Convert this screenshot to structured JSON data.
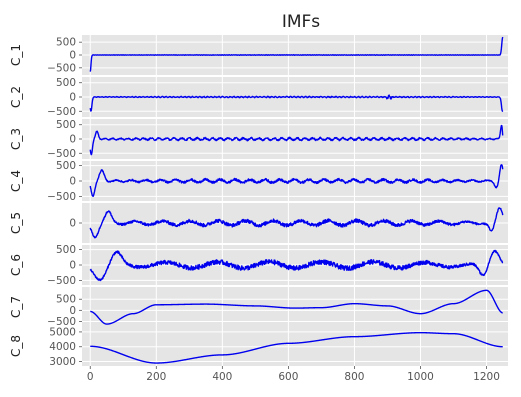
{
  "chart_data": {
    "type": "line",
    "title": "IMFs",
    "color": "#0000ee",
    "panel_background": "#e5e5e5",
    "grid": true,
    "x_ticks": [
      0,
      200,
      400,
      600,
      800,
      1000,
      1200
    ],
    "x_range": [
      -25,
      1265
    ],
    "x_samples": 1250,
    "panels": [
      {
        "name": "C_1",
        "ylim": [
          -780,
          780
        ],
        "yticks": [
          500,
          0,
          -500
        ],
        "features": [
          {
            "center": 0,
            "width": 3,
            "amplitude": -650
          },
          {
            "center": 1249,
            "width": 4,
            "amplitude": 700
          }
        ],
        "noise": [
          {
            "center": 620,
            "width": 700,
            "amplitude": 12,
            "freq": 0.9
          }
        ],
        "base": 0
      },
      {
        "name": "C_2",
        "ylim": [
          -700,
          700
        ],
        "yticks": [
          500,
          0,
          -500
        ],
        "features": [
          {
            "center": 2,
            "width": 4,
            "amplitude": -500
          },
          {
            "center": 1248,
            "width": 4,
            "amplitude": -500
          }
        ],
        "noise": [
          {
            "center": 620,
            "width": 650,
            "amplitude": 25,
            "freq": 0.55
          },
          {
            "center": 905,
            "width": 8,
            "amplitude": 90,
            "freq": 0.5
          }
        ],
        "base": 0
      },
      {
        "name": "C_3",
        "ylim": [
          -700,
          700
        ],
        "yticks": [
          500,
          0,
          -500
        ],
        "features": [
          {
            "center": 3,
            "width": 5,
            "amplitude": -550
          },
          {
            "center": 20,
            "width": 6,
            "amplitude": 260
          },
          {
            "center": 1246,
            "width": 5,
            "amplitude": 520
          },
          {
            "center": 1252,
            "width": 4,
            "amplitude": -420
          }
        ],
        "noise": [
          {
            "center": 620,
            "width": 650,
            "amplitude": 60,
            "freq": 0.27
          }
        ],
        "base": 0
      },
      {
        "name": "C_4",
        "ylim": [
          -650,
          650
        ],
        "yticks": [
          500,
          0,
          -500
        ],
        "features": [
          {
            "center": 8,
            "width": 8,
            "amplitude": -480
          },
          {
            "center": 35,
            "width": 10,
            "amplitude": 330
          },
          {
            "center": 1245,
            "width": 7,
            "amplitude": 520
          },
          {
            "center": 1230,
            "width": 8,
            "amplitude": -200
          }
        ],
        "noise": [
          {
            "center": 620,
            "width": 620,
            "amplitude": 80,
            "freq": 0.14
          }
        ],
        "base": 0
      },
      {
        "name": "C_5",
        "ylim": [
          -620,
          620
        ],
        "yticks": [
          0
        ],
        "features": [
          {
            "center": 15,
            "width": 14,
            "amplitude": -420
          },
          {
            "center": 55,
            "width": 14,
            "amplitude": 330
          },
          {
            "center": 1240,
            "width": 12,
            "amplitude": 460
          },
          {
            "center": 1215,
            "width": 10,
            "amplitude": -280
          }
        ],
        "noise": [
          {
            "center": 620,
            "width": 620,
            "amplitude": 120,
            "freq": 0.075
          }
        ],
        "base": 0
      },
      {
        "name": "C_6",
        "ylim": [
          -650,
          650
        ],
        "yticks": [
          500,
          0,
          -500
        ],
        "features": [
          {
            "center": 30,
            "width": 25,
            "amplitude": -480
          },
          {
            "center": 80,
            "width": 22,
            "amplitude": 380
          },
          {
            "center": 1225,
            "width": 20,
            "amplitude": 480
          },
          {
            "center": 1190,
            "width": 18,
            "amplitude": -380
          }
        ],
        "noise": [
          {
            "center": 620,
            "width": 600,
            "amplitude": 170,
            "freq": 0.04
          }
        ],
        "base": 0
      },
      {
        "name": "C_7",
        "ylim": [
          -750,
          1050
        ],
        "yticks": [
          500,
          0,
          -500
        ],
        "curve": [
          [
            0,
            -50
          ],
          [
            50,
            -620
          ],
          [
            130,
            -150
          ],
          [
            200,
            250
          ],
          [
            350,
            280
          ],
          [
            500,
            200
          ],
          [
            620,
            100
          ],
          [
            700,
            120
          ],
          [
            800,
            300
          ],
          [
            900,
            200
          ],
          [
            1000,
            -150
          ],
          [
            1100,
            300
          ],
          [
            1200,
            900
          ],
          [
            1250,
            -120
          ]
        ],
        "base": 0
      },
      {
        "name": "C_8",
        "ylim": [
          2700,
          5400
        ],
        "yticks": [
          5000,
          4000,
          3000
        ],
        "curve": [
          [
            0,
            4030
          ],
          [
            200,
            2900
          ],
          [
            400,
            3450
          ],
          [
            600,
            4230
          ],
          [
            800,
            4680
          ],
          [
            1000,
            4950
          ],
          [
            1100,
            4880
          ],
          [
            1250,
            4000
          ]
        ],
        "base": 0
      }
    ]
  }
}
